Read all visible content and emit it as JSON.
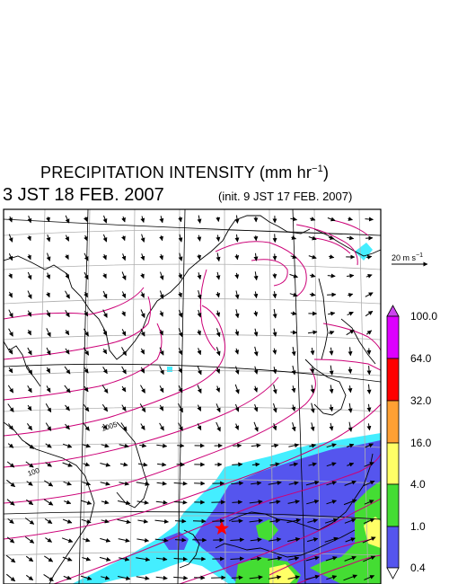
{
  "figure": {
    "title_main": "PRECIPITATION INTENSITY (mm hr",
    "title_exp": "−1",
    "title_end": ")",
    "valid_time": "3 JST 18 FEB. 2007",
    "init_time": "(init. 9 JST 17 FEB. 2007)"
  },
  "reference_vector": {
    "label": "20 m s",
    "exp": "−1"
  },
  "isobar_labels": [
    "1005",
    "100"
  ],
  "colorbar": {
    "levels": [
      {
        "value": "100.0",
        "color": "#dd00ff"
      },
      {
        "value": "64.0",
        "color": "#ff0000"
      },
      {
        "value": "32.0",
        "color": "#ffa033"
      },
      {
        "value": "16.0",
        "color": "#ffff66"
      },
      {
        "value": "4.0",
        "color": "#44dd33"
      },
      {
        "value": "1.0",
        "color": "#5555ee"
      },
      {
        "value": "0.4",
        "color": "#44eeff"
      }
    ],
    "top_triangle_color": "#cc44ee"
  },
  "colors": {
    "isobar": "#cc0077",
    "coast": "#000000",
    "grid": "#b0b0b0",
    "marker": "#ff0000"
  },
  "icons": {
    "marker": "star-marker",
    "wind": "wind-arrow"
  }
}
